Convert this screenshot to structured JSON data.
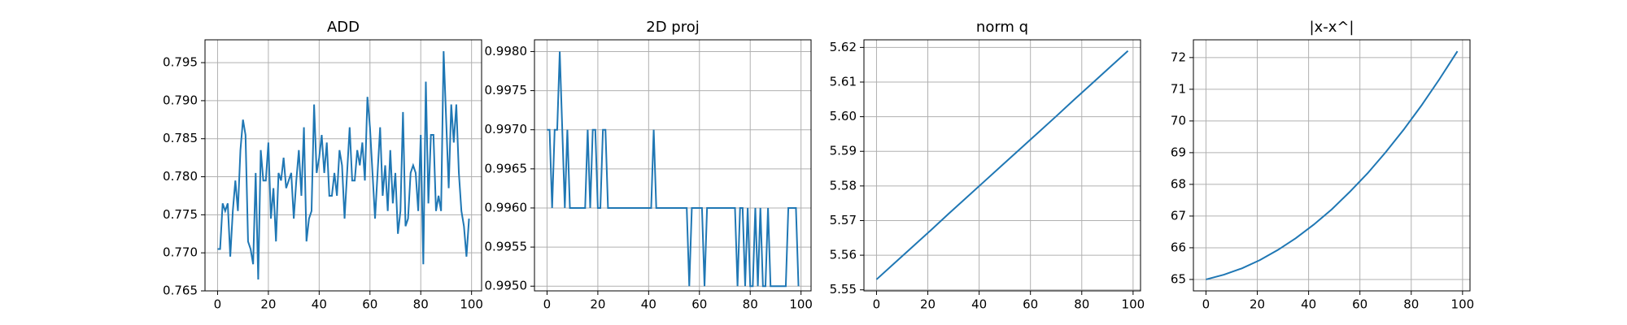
{
  "chart_data": [
    {
      "type": "line",
      "title": "ADD",
      "color": "#1f77b4",
      "grid": true,
      "x": [
        0,
        1,
        2,
        3,
        4,
        5,
        6,
        7,
        8,
        9,
        10,
        11,
        12,
        13,
        14,
        15,
        16,
        17,
        18,
        19,
        20,
        21,
        22,
        23,
        24,
        25,
        26,
        27,
        28,
        29,
        30,
        31,
        32,
        33,
        34,
        35,
        36,
        37,
        38,
        39,
        40,
        41,
        42,
        43,
        44,
        45,
        46,
        47,
        48,
        49,
        50,
        51,
        52,
        53,
        54,
        55,
        56,
        57,
        58,
        59,
        60,
        61,
        62,
        63,
        64,
        65,
        66,
        67,
        68,
        69,
        70,
        71,
        72,
        73,
        74,
        75,
        76,
        77,
        78,
        79,
        80,
        81,
        82,
        83,
        84,
        85,
        86,
        87,
        88,
        89,
        90,
        91,
        92,
        93,
        94,
        95,
        96,
        97,
        98,
        99
      ],
      "values": [
        0.7705,
        0.7705,
        0.7765,
        0.7755,
        0.7765,
        0.7695,
        0.7755,
        0.7795,
        0.7755,
        0.7835,
        0.7875,
        0.7855,
        0.7715,
        0.7705,
        0.7685,
        0.7805,
        0.7665,
        0.7835,
        0.7795,
        0.7795,
        0.7845,
        0.7745,
        0.7785,
        0.7715,
        0.7805,
        0.7795,
        0.7825,
        0.7785,
        0.7795,
        0.7805,
        0.7745,
        0.7795,
        0.7835,
        0.7775,
        0.7865,
        0.7715,
        0.7745,
        0.7755,
        0.7895,
        0.7805,
        0.7825,
        0.7855,
        0.7805,
        0.7845,
        0.7775,
        0.7775,
        0.7805,
        0.7775,
        0.7835,
        0.7815,
        0.7745,
        0.7805,
        0.7865,
        0.7795,
        0.7795,
        0.7835,
        0.7815,
        0.7845,
        0.7795,
        0.7905,
        0.7865,
        0.7805,
        0.7745,
        0.7805,
        0.7865,
        0.7775,
        0.7815,
        0.7755,
        0.7835,
        0.7765,
        0.7805,
        0.7725,
        0.7755,
        0.7885,
        0.7735,
        0.7745,
        0.7805,
        0.7815,
        0.7805,
        0.7755,
        0.7855,
        0.7685,
        0.7925,
        0.7765,
        0.7855,
        0.7855,
        0.7755,
        0.7775,
        0.7755,
        0.7965,
        0.7875,
        0.7785,
        0.7895,
        0.7845,
        0.7895,
        0.7805,
        0.7755,
        0.7735,
        0.7695,
        0.7745
      ],
      "xlim": [
        -4.95,
        103.95
      ],
      "xticks": [
        0,
        20,
        40,
        60,
        80,
        100
      ],
      "ylim": [
        0.765,
        0.798
      ],
      "yticks": [
        0.765,
        {
          "value": 0.77,
          "label": "0.770"
        },
        0.775,
        {
          "value": 0.78,
          "label": "0.780"
        },
        0.785,
        {
          "value": 0.79,
          "label": "0.790"
        },
        0.795
      ]
    },
    {
      "type": "line",
      "title": "2D proj",
      "color": "#1f77b4",
      "grid": true,
      "x": [
        0,
        1,
        2,
        3,
        4,
        5,
        6,
        7,
        8,
        9,
        10,
        11,
        12,
        13,
        14,
        15,
        16,
        17,
        18,
        19,
        20,
        21,
        22,
        23,
        24,
        25,
        26,
        27,
        28,
        29,
        30,
        31,
        32,
        33,
        34,
        35,
        36,
        37,
        38,
        39,
        40,
        41,
        42,
        43,
        44,
        45,
        46,
        47,
        48,
        49,
        50,
        51,
        52,
        53,
        54,
        55,
        56,
        57,
        58,
        59,
        60,
        61,
        62,
        63,
        64,
        65,
        66,
        67,
        68,
        69,
        70,
        71,
        72,
        73,
        74,
        75,
        76,
        77,
        78,
        79,
        80,
        81,
        82,
        83,
        84,
        85,
        86,
        87,
        88,
        89,
        90,
        91,
        92,
        93,
        94,
        95,
        96,
        97,
        98,
        99
      ],
      "values": [
        0.997,
        0.997,
        0.996,
        0.997,
        0.997,
        0.998,
        0.997,
        0.996,
        0.997,
        0.996,
        0.996,
        0.996,
        0.996,
        0.996,
        0.996,
        0.996,
        0.997,
        0.996,
        0.997,
        0.997,
        0.996,
        0.996,
        0.997,
        0.997,
        0.996,
        0.996,
        0.996,
        0.996,
        0.996,
        0.996,
        0.996,
        0.996,
        0.996,
        0.996,
        0.996,
        0.996,
        0.996,
        0.996,
        0.996,
        0.996,
        0.996,
        0.996,
        0.997,
        0.996,
        0.996,
        0.996,
        0.996,
        0.996,
        0.996,
        0.996,
        0.996,
        0.996,
        0.996,
        0.996,
        0.996,
        0.996,
        0.995,
        0.996,
        0.996,
        0.996,
        0.996,
        0.996,
        0.995,
        0.996,
        0.996,
        0.996,
        0.996,
        0.996,
        0.996,
        0.996,
        0.996,
        0.996,
        0.996,
        0.996,
        0.996,
        0.995,
        0.996,
        0.996,
        0.995,
        0.996,
        0.995,
        0.995,
        0.996,
        0.995,
        0.996,
        0.995,
        0.995,
        0.996,
        0.995,
        0.995,
        0.995,
        0.995,
        0.995,
        0.995,
        0.995,
        0.996,
        0.996,
        0.996,
        0.996,
        0.995
      ],
      "xlim": [
        -4.95,
        103.95
      ],
      "xticks": [
        0,
        20,
        40,
        60,
        80,
        100
      ],
      "ylim": [
        0.99494,
        0.99815
      ],
      "yticks": [
        {
          "value": 0.995,
          "label": "0.9950"
        },
        0.9955,
        {
          "value": 0.996,
          "label": "0.9960"
        },
        0.9965,
        {
          "value": 0.997,
          "label": "0.9970"
        },
        0.9975,
        {
          "value": 0.998,
          "label": "0.9980"
        }
      ]
    },
    {
      "type": "line",
      "title": "norm q",
      "color": "#1f77b4",
      "grid": true,
      "x": [
        0,
        7,
        14,
        21,
        28,
        35,
        42,
        49,
        56,
        63,
        70,
        77,
        84,
        91,
        98
      ],
      "values": [
        5.553,
        5.5577,
        5.5624,
        5.5671,
        5.5719,
        5.5766,
        5.5813,
        5.586,
        5.5907,
        5.5954,
        5.6001,
        5.6049,
        5.6096,
        5.6143,
        5.619
      ],
      "xlim": [
        -4.9,
        102.9
      ],
      "xticks": [
        0,
        20,
        40,
        60,
        80,
        100
      ],
      "ylim": [
        5.5497,
        5.6222
      ],
      "yticks": [
        5.55,
        5.56,
        5.57,
        5.58,
        5.59,
        {
          "value": 5.6,
          "label": "5.60"
        },
        5.61,
        5.62
      ]
    },
    {
      "type": "line",
      "title": "|x-x^|",
      "color": "#1f77b4",
      "grid": true,
      "x": [
        0,
        7,
        14,
        21,
        28,
        35,
        42,
        49,
        56,
        63,
        70,
        77,
        84,
        91,
        98
      ],
      "values": [
        65.0,
        65.15,
        65.35,
        65.61,
        65.93,
        66.3,
        66.73,
        67.21,
        67.76,
        68.35,
        69.01,
        69.72,
        70.49,
        71.32,
        72.2
      ],
      "xlim": [
        -4.9,
        102.9
      ],
      "xticks": [
        0,
        20,
        40,
        60,
        80,
        100
      ],
      "ylim": [
        64.64,
        72.56
      ],
      "yticks": [
        65,
        66,
        67,
        68,
        69,
        70,
        71,
        72
      ]
    }
  ]
}
